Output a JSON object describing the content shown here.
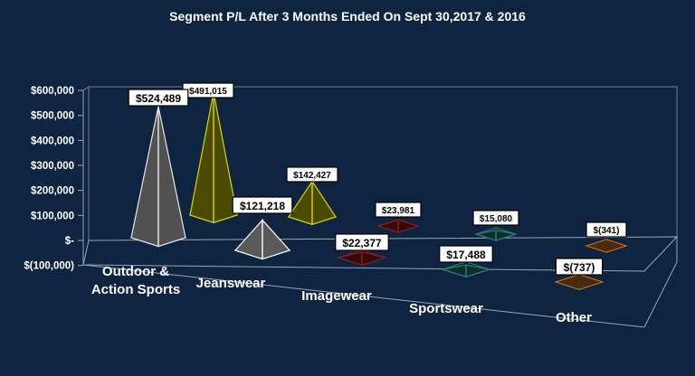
{
  "chart_data": {
    "type": "bar",
    "title": "Segment P/L After 3 Months Ended On Sept 30,2017 & 2016",
    "categories": [
      "Outdoor &\nAction Sports",
      "Jeanswear",
      "Imagewear",
      "Sportswear",
      "Other"
    ],
    "series": [
      {
        "values": [
          491015,
          142427,
          23981,
          15080,
          -341
        ],
        "labels": [
          "$491,015",
          "$142,427",
          "$23,981",
          "$15,080",
          "$(341)"
        ],
        "colors": [
          "#d6d600",
          "#d6d600",
          "#8e1c1c",
          "#2e7e7e",
          "#d27a16"
        ]
      },
      {
        "values": [
          524489,
          121218,
          22377,
          17488,
          -737
        ],
        "labels": [
          "$524,489",
          "$121,218",
          "$22,377",
          "$17,488",
          "$(737)"
        ],
        "colors": [
          "#e8e8e8",
          "#ffffff",
          "#8e1c1c",
          "#2e7e7e",
          "#d27a16"
        ]
      }
    ],
    "y_ticks": [
      600000,
      500000,
      400000,
      300000,
      200000,
      100000,
      0,
      -100000
    ],
    "y_tick_labels": [
      "$600,000",
      "$500,000",
      "$400,000",
      "$300,000",
      "$200,000",
      "$100,000",
      "$-",
      "$(100,000)"
    ],
    "ylim": [
      -100000,
      600000
    ],
    "grid": false,
    "style": "3d-pyramid",
    "background_color": "#0f2440"
  }
}
